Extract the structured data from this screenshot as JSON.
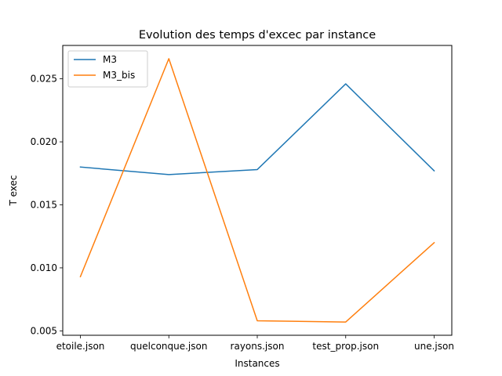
{
  "chart_data": {
    "type": "line",
    "title": "Evolution des temps d'excec par instance",
    "xlabel": "Instances",
    "ylabel": "T exec",
    "categories": [
      "etoile.json",
      "quelconque.json",
      "rayons.json",
      "test_prop.json",
      "une.json"
    ],
    "series": [
      {
        "name": "M3",
        "color": "#1f77b4",
        "values": [
          0.018,
          0.0174,
          0.0178,
          0.0246,
          0.0177
        ]
      },
      {
        "name": "M3_bis",
        "color": "#ff7f0e",
        "values": [
          0.0093,
          0.0266,
          0.0058,
          0.0057,
          0.012
        ]
      }
    ],
    "yticks": [
      "0.005",
      "0.010",
      "0.015",
      "0.020",
      "0.025"
    ],
    "ytick_values": [
      0.005,
      0.01,
      0.015,
      0.02,
      0.025
    ],
    "ylim": [
      0.00465,
      0.02765
    ],
    "grid": false,
    "legend": "top-left"
  }
}
